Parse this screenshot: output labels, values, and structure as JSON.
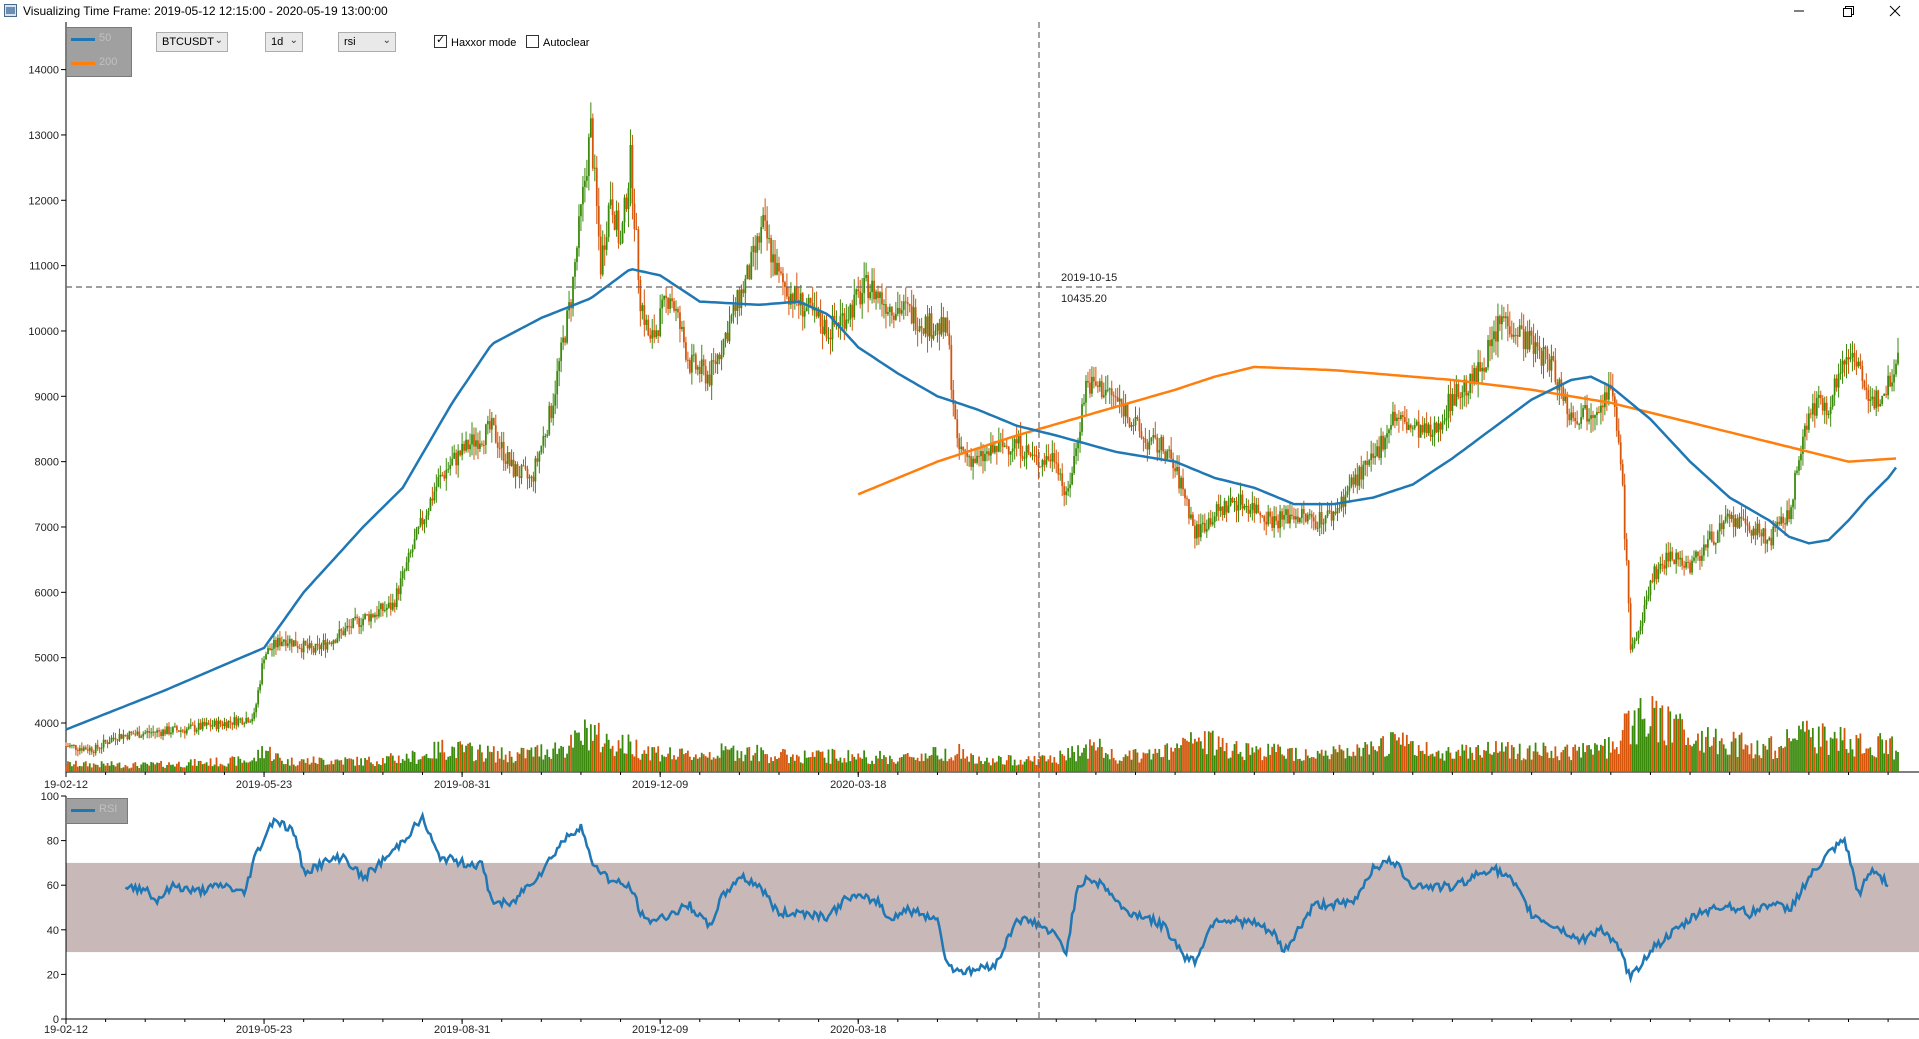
{
  "window": {
    "title": "Visualizing Time Frame: 2019-05-12 12:15:00 - 2020-05-19 13:00:00"
  },
  "toolbar": {
    "symbol": "BTCUSDT",
    "interval": "1d",
    "indicator": "rsi",
    "haxxor_label": "Haxxor mode",
    "haxxor_checked": true,
    "autoclear_label": "Autoclear",
    "autoclear_checked": false
  },
  "legend_main": [
    {
      "name": "50",
      "color": "#1f77b4"
    },
    {
      "name": "200",
      "color": "#ff7f0e"
    }
  ],
  "legend_rsi": [
    {
      "name": "RSI",
      "color": "#1f77b4"
    }
  ],
  "crosshair": {
    "date": "2019-10-15",
    "price": "10435.20"
  },
  "colors": {
    "up": "#3a8a0c",
    "down": "#d5550b",
    "ma50": "#1f77b4",
    "ma200": "#ff7f0e",
    "rsi": "#1f77b4",
    "rsi_band": "#c9b8b8",
    "grid_crosshair": "#666666"
  },
  "chart_data": [
    {
      "type": "candlestick",
      "x_ticks": [
        "19-02-12",
        "2019-05-23",
        "2019-08-31",
        "2019-12-09",
        "2020-03-18"
      ],
      "y_ticks": [
        4000,
        5000,
        6000,
        7000,
        8000,
        9000,
        10000,
        11000,
        12000,
        13000,
        14000
      ],
      "ylim": [
        3250,
        14300
      ],
      "close_path": [
        [
          0,
          3650
        ],
        [
          15,
          3600
        ],
        [
          25,
          3800
        ],
        [
          40,
          3850
        ],
        [
          60,
          3900
        ],
        [
          80,
          4000
        ],
        [
          95,
          4100
        ],
        [
          100,
          5050
        ],
        [
          110,
          5300
        ],
        [
          125,
          5100
        ],
        [
          140,
          5400
        ],
        [
          150,
          5600
        ],
        [
          165,
          5800
        ],
        [
          180,
          7100
        ],
        [
          188,
          7700
        ],
        [
          195,
          8000
        ],
        [
          205,
          8300
        ],
        [
          215,
          8500
        ],
        [
          225,
          7900
        ],
        [
          235,
          7700
        ],
        [
          245,
          8800
        ],
        [
          255,
          10500
        ],
        [
          260,
          11800
        ],
        [
          265,
          13100
        ],
        [
          270,
          11000
        ],
        [
          275,
          12100
        ],
        [
          280,
          11300
        ],
        [
          285,
          12600
        ],
        [
          290,
          10500
        ],
        [
          295,
          9800
        ],
        [
          305,
          10600
        ],
        [
          315,
          9500
        ],
        [
          325,
          9300
        ],
        [
          335,
          10100
        ],
        [
          345,
          10900
        ],
        [
          352,
          11600
        ],
        [
          360,
          10800
        ],
        [
          365,
          10600
        ],
        [
          375,
          10300
        ],
        [
          385,
          10000
        ],
        [
          395,
          10300
        ],
        [
          405,
          10700
        ],
        [
          415,
          10400
        ],
        [
          425,
          10300
        ],
        [
          435,
          10100
        ],
        [
          445,
          10000
        ],
        [
          450,
          8200
        ],
        [
          460,
          8000
        ],
        [
          470,
          8200
        ],
        [
          480,
          8300
        ],
        [
          490,
          8000
        ],
        [
          500,
          8100
        ],
        [
          505,
          7400
        ],
        [
          510,
          8200
        ],
        [
          515,
          9200
        ],
        [
          525,
          9100
        ],
        [
          535,
          8800
        ],
        [
          545,
          8300
        ],
        [
          555,
          8200
        ],
        [
          565,
          7500
        ],
        [
          570,
          6900
        ],
        [
          580,
          7200
        ],
        [
          590,
          7400
        ],
        [
          600,
          7300
        ],
        [
          610,
          7100
        ],
        [
          620,
          7200
        ],
        [
          630,
          7100
        ],
        [
          640,
          7200
        ],
        [
          650,
          7700
        ],
        [
          660,
          8000
        ],
        [
          670,
          8700
        ],
        [
          680,
          8500
        ],
        [
          690,
          8400
        ],
        [
          700,
          9000
        ],
        [
          710,
          9200
        ],
        [
          720,
          9800
        ],
        [
          725,
          10200
        ],
        [
          730,
          10100
        ],
        [
          740,
          9800
        ],
        [
          750,
          9500
        ],
        [
          760,
          8700
        ],
        [
          770,
          8800
        ],
        [
          780,
          9100
        ],
        [
          785,
          8100
        ],
        [
          790,
          5200
        ],
        [
          795,
          5400
        ],
        [
          800,
          6200
        ],
        [
          810,
          6600
        ],
        [
          820,
          6400
        ],
        [
          830,
          6800
        ],
        [
          840,
          7100
        ],
        [
          850,
          7000
        ],
        [
          860,
          6800
        ],
        [
          870,
          7200
        ],
        [
          880,
          8800
        ],
        [
          890,
          8900
        ],
        [
          900,
          9700
        ],
        [
          905,
          9600
        ],
        [
          910,
          8800
        ],
        [
          920,
          9200
        ],
        [
          925,
          9700
        ]
      ],
      "vol_path": [
        [
          0,
          0.15
        ],
        [
          40,
          0.13
        ],
        [
          95,
          0.22
        ],
        [
          100,
          0.45
        ],
        [
          110,
          0.2
        ],
        [
          140,
          0.22
        ],
        [
          150,
          0.2
        ],
        [
          180,
          0.3
        ],
        [
          190,
          0.45
        ],
        [
          215,
          0.35
        ],
        [
          225,
          0.3
        ],
        [
          255,
          0.5
        ],
        [
          265,
          0.8
        ],
        [
          270,
          0.6
        ],
        [
          290,
          0.45
        ],
        [
          310,
          0.3
        ],
        [
          340,
          0.4
        ],
        [
          360,
          0.3
        ],
        [
          400,
          0.3
        ],
        [
          420,
          0.25
        ],
        [
          450,
          0.4
        ],
        [
          460,
          0.2
        ],
        [
          500,
          0.25
        ],
        [
          520,
          0.5
        ],
        [
          530,
          0.25
        ],
        [
          560,
          0.4
        ],
        [
          570,
          0.6
        ],
        [
          600,
          0.4
        ],
        [
          640,
          0.35
        ],
        [
          660,
          0.4
        ],
        [
          670,
          0.6
        ],
        [
          690,
          0.35
        ],
        [
          720,
          0.45
        ],
        [
          760,
          0.35
        ],
        [
          780,
          0.5
        ],
        [
          790,
          0.9
        ],
        [
          800,
          1.0
        ],
        [
          830,
          0.6
        ],
        [
          860,
          0.45
        ],
        [
          880,
          0.7
        ],
        [
          890,
          0.6
        ],
        [
          920,
          0.5
        ],
        [
          925,
          0.4
        ]
      ],
      "ma50_path": [
        [
          0,
          3900
        ],
        [
          50,
          4500
        ],
        [
          100,
          5150
        ],
        [
          120,
          6000
        ],
        [
          150,
          7000
        ],
        [
          170,
          7600
        ],
        [
          195,
          8900
        ],
        [
          215,
          9800
        ],
        [
          240,
          10200
        ],
        [
          265,
          10500
        ],
        [
          285,
          10950
        ],
        [
          300,
          10850
        ],
        [
          320,
          10450
        ],
        [
          350,
          10400
        ],
        [
          370,
          10450
        ],
        [
          385,
          10250
        ],
        [
          400,
          9750
        ],
        [
          420,
          9350
        ],
        [
          440,
          9000
        ],
        [
          460,
          8800
        ],
        [
          480,
          8550
        ],
        [
          500,
          8400
        ],
        [
          530,
          8150
        ],
        [
          560,
          8000
        ],
        [
          580,
          7750
        ],
        [
          600,
          7600
        ],
        [
          620,
          7350
        ],
        [
          640,
          7350
        ],
        [
          660,
          7450
        ],
        [
          680,
          7650
        ],
        [
          700,
          8050
        ],
        [
          720,
          8500
        ],
        [
          740,
          8950
        ],
        [
          760,
          9250
        ],
        [
          770,
          9300
        ],
        [
          780,
          9150
        ],
        [
          800,
          8650
        ],
        [
          820,
          8000
        ],
        [
          840,
          7450
        ],
        [
          860,
          7100
        ],
        [
          870,
          6850
        ],
        [
          880,
          6750
        ],
        [
          890,
          6800
        ],
        [
          900,
          7100
        ],
        [
          910,
          7450
        ],
        [
          920,
          7750
        ],
        [
          925,
          7950
        ]
      ],
      "ma200_path": [
        [
          400,
          7500
        ],
        [
          440,
          8000
        ],
        [
          480,
          8400
        ],
        [
          520,
          8750
        ],
        [
          560,
          9100
        ],
        [
          580,
          9300
        ],
        [
          600,
          9450
        ],
        [
          640,
          9400
        ],
        [
          700,
          9250
        ],
        [
          740,
          9100
        ],
        [
          780,
          8900
        ],
        [
          820,
          8600
        ],
        [
          860,
          8300
        ],
        [
          900,
          8000
        ],
        [
          925,
          8050
        ]
      ]
    },
    {
      "type": "line",
      "series": [
        {
          "name": "RSI",
          "values_path": [
            [
              30,
              58
            ],
            [
              40,
              59
            ],
            [
              45,
              53
            ],
            [
              55,
              60
            ],
            [
              65,
              57
            ],
            [
              80,
              60
            ],
            [
              90,
              56
            ],
            [
              95,
              72
            ],
            [
              105,
              90
            ],
            [
              115,
              84
            ],
            [
              120,
              66
            ],
            [
              130,
              70
            ],
            [
              140,
              73
            ],
            [
              150,
              63
            ],
            [
              165,
              75
            ],
            [
              180,
              90
            ],
            [
              188,
              73
            ],
            [
              200,
              70
            ],
            [
              210,
              69
            ],
            [
              215,
              53
            ],
            [
              225,
              51
            ],
            [
              230,
              57
            ],
            [
              240,
              66
            ],
            [
              250,
              79
            ],
            [
              260,
              87
            ],
            [
              265,
              71
            ],
            [
              275,
              62
            ],
            [
              285,
              59
            ],
            [
              292,
              44
            ],
            [
              300,
              45
            ],
            [
              315,
              51
            ],
            [
              325,
              41
            ],
            [
              330,
              53
            ],
            [
              340,
              64
            ],
            [
              350,
              60
            ],
            [
              360,
              47
            ],
            [
              370,
              48
            ],
            [
              385,
              46
            ],
            [
              395,
              55
            ],
            [
              410,
              53
            ],
            [
              415,
              45
            ],
            [
              425,
              49
            ],
            [
              440,
              45
            ],
            [
              445,
              24
            ],
            [
              455,
              21
            ],
            [
              470,
              25
            ],
            [
              480,
              45
            ],
            [
              490,
              43
            ],
            [
              500,
              37
            ],
            [
              505,
              30
            ],
            [
              510,
              56
            ],
            [
              515,
              64
            ],
            [
              525,
              59
            ],
            [
              535,
              48
            ],
            [
              545,
              46
            ],
            [
              555,
              41
            ],
            [
              565,
              28
            ],
            [
              570,
              26
            ],
            [
              580,
              45
            ],
            [
              590,
              44
            ],
            [
              600,
              43
            ],
            [
              610,
              38
            ],
            [
              615,
              30
            ],
            [
              630,
              51
            ],
            [
              650,
              52
            ],
            [
              660,
              68
            ],
            [
              670,
              71
            ],
            [
              680,
              60
            ],
            [
              700,
              59
            ],
            [
              720,
              68
            ],
            [
              730,
              62
            ],
            [
              740,
              47
            ],
            [
              755,
              40
            ],
            [
              765,
              35
            ],
            [
              775,
              41
            ],
            [
              785,
              30
            ],
            [
              790,
              18
            ],
            [
              800,
              31
            ],
            [
              815,
              41
            ],
            [
              825,
              48
            ],
            [
              840,
              51
            ],
            [
              850,
              47
            ],
            [
              860,
              52
            ],
            [
              870,
              49
            ],
            [
              880,
              63
            ],
            [
              890,
              74
            ],
            [
              898,
              80
            ],
            [
              905,
              56
            ],
            [
              912,
              67
            ],
            [
              920,
              61
            ]
          ]
        }
      ],
      "x_ticks": [
        "19-02-12",
        "2019-05-23",
        "2019-08-31",
        "2019-12-09",
        "2020-03-18"
      ],
      "y_ticks": [
        0,
        20,
        40,
        60,
        80,
        100
      ],
      "ylim": [
        0,
        100
      ],
      "band": [
        30,
        70
      ]
    }
  ]
}
